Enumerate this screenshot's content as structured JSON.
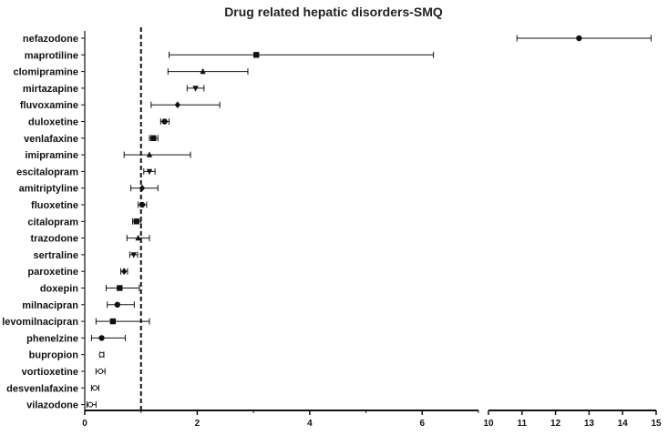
{
  "chart_data": {
    "type": "forest",
    "title": "Drug related hepatic disorders-SMQ",
    "reference_line": 1,
    "axis": {
      "segments": [
        {
          "range": [
            0,
            7
          ],
          "ticks": [
            0,
            2,
            4,
            6
          ]
        },
        {
          "range": [
            10,
            15
          ],
          "ticks": [
            10,
            11,
            12,
            13,
            14,
            15
          ]
        }
      ]
    },
    "drugs": [
      {
        "name": "nefazodone",
        "est": 12.7,
        "lo": 10.85,
        "hi": 14.85,
        "marker": "circle"
      },
      {
        "name": "maprotiline",
        "est": 3.05,
        "lo": 1.5,
        "hi": 6.2,
        "marker": "square"
      },
      {
        "name": "clomipramine",
        "est": 2.1,
        "lo": 1.48,
        "hi": 2.9,
        "marker": "triangle-up"
      },
      {
        "name": "mirtazapine",
        "est": 1.97,
        "lo": 1.82,
        "hi": 2.12,
        "marker": "triangle-down"
      },
      {
        "name": "fluvoxamine",
        "est": 1.65,
        "lo": 1.18,
        "hi": 2.4,
        "marker": "diamond"
      },
      {
        "name": "duloxetine",
        "est": 1.42,
        "lo": 1.35,
        "hi": 1.5,
        "marker": "circle"
      },
      {
        "name": "venlafaxine",
        "est": 1.22,
        "lo": 1.15,
        "hi": 1.3,
        "marker": "square"
      },
      {
        "name": "imipramine",
        "est": 1.15,
        "lo": 0.7,
        "hi": 1.88,
        "marker": "triangle-up"
      },
      {
        "name": "escitalopram",
        "est": 1.15,
        "lo": 1.05,
        "hi": 1.25,
        "marker": "triangle-down"
      },
      {
        "name": "amitriptyline",
        "est": 1.02,
        "lo": 0.82,
        "hi": 1.3,
        "marker": "diamond"
      },
      {
        "name": "fluoxetine",
        "est": 1.02,
        "lo": 0.95,
        "hi": 1.1,
        "marker": "circle"
      },
      {
        "name": "citalopram",
        "est": 0.92,
        "lo": 0.85,
        "hi": 1.0,
        "marker": "square"
      },
      {
        "name": "trazodone",
        "est": 0.95,
        "lo": 0.75,
        "hi": 1.15,
        "marker": "triangle-up"
      },
      {
        "name": "sertraline",
        "est": 0.87,
        "lo": 0.8,
        "hi": 0.94,
        "marker": "triangle-down"
      },
      {
        "name": "paroxetine",
        "est": 0.7,
        "lo": 0.64,
        "hi": 0.76,
        "marker": "diamond"
      },
      {
        "name": "doxepin",
        "est": 0.62,
        "lo": 0.38,
        "hi": 0.97,
        "marker": "square"
      },
      {
        "name": "milnacipran",
        "est": 0.58,
        "lo": 0.4,
        "hi": 0.88,
        "marker": "circle"
      },
      {
        "name": "levomilnacipran",
        "est": 0.5,
        "lo": 0.2,
        "hi": 1.15,
        "marker": "square"
      },
      {
        "name": "phenelzine",
        "est": 0.3,
        "lo": 0.12,
        "hi": 0.72,
        "marker": "circle"
      },
      {
        "name": "bupropion",
        "est": 0.3,
        "lo": 0.27,
        "hi": 0.34,
        "marker": "circle-open"
      },
      {
        "name": "vortioxetine",
        "est": 0.28,
        "lo": 0.2,
        "hi": 0.36,
        "marker": "circle-open"
      },
      {
        "name": "desvenlafaxine",
        "est": 0.18,
        "lo": 0.12,
        "hi": 0.25,
        "marker": "circle-open"
      },
      {
        "name": "vilazodone",
        "est": 0.1,
        "lo": 0.04,
        "hi": 0.2,
        "marker": "circle-open"
      }
    ]
  }
}
